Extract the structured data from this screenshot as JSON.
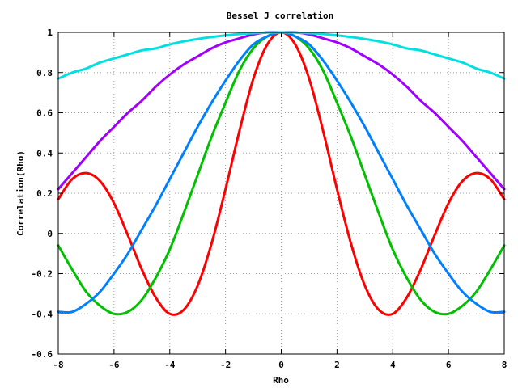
{
  "chart_data": {
    "type": "line",
    "title": "Bessel J correlation",
    "xlabel": "Rho",
    "ylabel": "Correlation(Rho)",
    "xlim": [
      -8,
      8
    ],
    "ylim": [
      -0.6,
      1
    ],
    "xticks": [
      -8,
      -6,
      -4,
      -2,
      0,
      2,
      4,
      6,
      8
    ],
    "xtick_labels": [
      "-8",
      "-6",
      "-4",
      "-2",
      "0",
      "2",
      "4",
      "6",
      "8"
    ],
    "yticks": [
      -0.6,
      -0.4,
      -0.2,
      0,
      0.2,
      0.4,
      0.6,
      0.8,
      1
    ],
    "ytick_labels": [
      "-0.6",
      "-0.4",
      "-0.2",
      "0",
      "0.2",
      "0.4",
      "0.6",
      "0.8",
      "1"
    ],
    "grid": true,
    "legend": "none",
    "series": [
      {
        "color": "#ff0000",
        "x": [
          -8,
          -7.5,
          -7,
          -6.5,
          -6,
          -5.5,
          -5,
          -4.5,
          -4,
          -3.5,
          -3,
          -2.5,
          -2,
          -1.5,
          -1,
          -0.5,
          0,
          0.5,
          1,
          1.5,
          2,
          2.5,
          3,
          3.5,
          4,
          4.5,
          5,
          5.5,
          6,
          6.5,
          7,
          7.5,
          8
        ],
        "y": [
          0.17,
          0.27,
          0.3,
          0.26,
          0.15,
          -0.01,
          -0.18,
          -0.32,
          -0.4,
          -0.38,
          -0.26,
          -0.05,
          0.22,
          0.51,
          0.77,
          0.94,
          1,
          0.94,
          0.77,
          0.51,
          0.22,
          -0.05,
          -0.26,
          -0.38,
          -0.4,
          -0.32,
          -0.18,
          -0.01,
          0.15,
          0.26,
          0.3,
          0.27,
          0.17
        ]
      },
      {
        "color": "#00c000",
        "x": [
          -8,
          -7.5,
          -7,
          -6.5,
          -6,
          -5.5,
          -5,
          -4.5,
          -4,
          -3.5,
          -3,
          -2.5,
          -2,
          -1.5,
          -1,
          -0.5,
          0,
          0.5,
          1,
          1.5,
          2,
          2.5,
          3,
          3.5,
          4,
          4.5,
          5,
          5.5,
          6,
          6.5,
          7,
          7.5,
          8
        ],
        "y": [
          -0.06,
          -0.18,
          -0.29,
          -0.36,
          -0.4,
          -0.39,
          -0.33,
          -0.22,
          -0.08,
          0.1,
          0.29,
          0.48,
          0.65,
          0.81,
          0.92,
          0.98,
          1,
          0.98,
          0.92,
          0.81,
          0.65,
          0.48,
          0.29,
          0.1,
          -0.08,
          -0.22,
          -0.33,
          -0.39,
          -0.4,
          -0.36,
          -0.29,
          -0.18,
          -0.06
        ]
      },
      {
        "color": "#0080ff",
        "x": [
          -8,
          -7.5,
          -7,
          -6.5,
          -6,
          -5.5,
          -5,
          -4.5,
          -4,
          -3.5,
          -3,
          -2.5,
          -2,
          -1.5,
          -1,
          -0.5,
          0,
          0.5,
          1,
          1.5,
          2,
          2.5,
          3,
          3.5,
          4,
          4.5,
          5,
          5.5,
          6,
          6.5,
          7,
          7.5,
          8
        ],
        "y": [
          -0.39,
          -0.39,
          -0.35,
          -0.29,
          -0.2,
          -0.1,
          0.02,
          0.14,
          0.27,
          0.4,
          0.53,
          0.65,
          0.76,
          0.86,
          0.94,
          0.98,
          1,
          0.98,
          0.94,
          0.86,
          0.76,
          0.65,
          0.53,
          0.4,
          0.27,
          0.14,
          0.02,
          -0.1,
          -0.2,
          -0.29,
          -0.35,
          -0.39,
          -0.39
        ]
      },
      {
        "color": "#a000ff",
        "x": [
          -8,
          -7.5,
          -7,
          -6.5,
          -6,
          -5.5,
          -5,
          -4.5,
          -4,
          -3.5,
          -3,
          -2.5,
          -2,
          -1.5,
          -1,
          -0.5,
          0,
          0.5,
          1,
          1.5,
          2,
          2.5,
          3,
          3.5,
          4,
          4.5,
          5,
          5.5,
          6,
          6.5,
          7,
          7.5,
          8
        ],
        "y": [
          0.22,
          0.3,
          0.38,
          0.46,
          0.53,
          0.6,
          0.66,
          0.73,
          0.79,
          0.84,
          0.88,
          0.92,
          0.95,
          0.97,
          0.99,
          1,
          1,
          1,
          0.99,
          0.97,
          0.95,
          0.92,
          0.88,
          0.84,
          0.79,
          0.73,
          0.66,
          0.6,
          0.53,
          0.46,
          0.38,
          0.3,
          0.22
        ]
      },
      {
        "color": "#00e0e0",
        "x": [
          -8,
          -7.5,
          -7,
          -6.5,
          -6,
          -5.5,
          -5,
          -4.5,
          -4,
          -3.5,
          -3,
          -2.5,
          -2,
          -1.5,
          -1,
          -0.5,
          0,
          0.5,
          1,
          1.5,
          2,
          2.5,
          3,
          3.5,
          4,
          4.5,
          5,
          5.5,
          6,
          6.5,
          7,
          7.5,
          8
        ],
        "y": [
          0.77,
          0.8,
          0.82,
          0.85,
          0.87,
          0.89,
          0.91,
          0.92,
          0.94,
          0.955,
          0.967,
          0.977,
          0.985,
          0.992,
          0.996,
          0.999,
          1,
          0.999,
          0.996,
          0.992,
          0.985,
          0.977,
          0.967,
          0.955,
          0.94,
          0.92,
          0.91,
          0.89,
          0.87,
          0.85,
          0.82,
          0.8,
          0.77
        ]
      }
    ]
  }
}
